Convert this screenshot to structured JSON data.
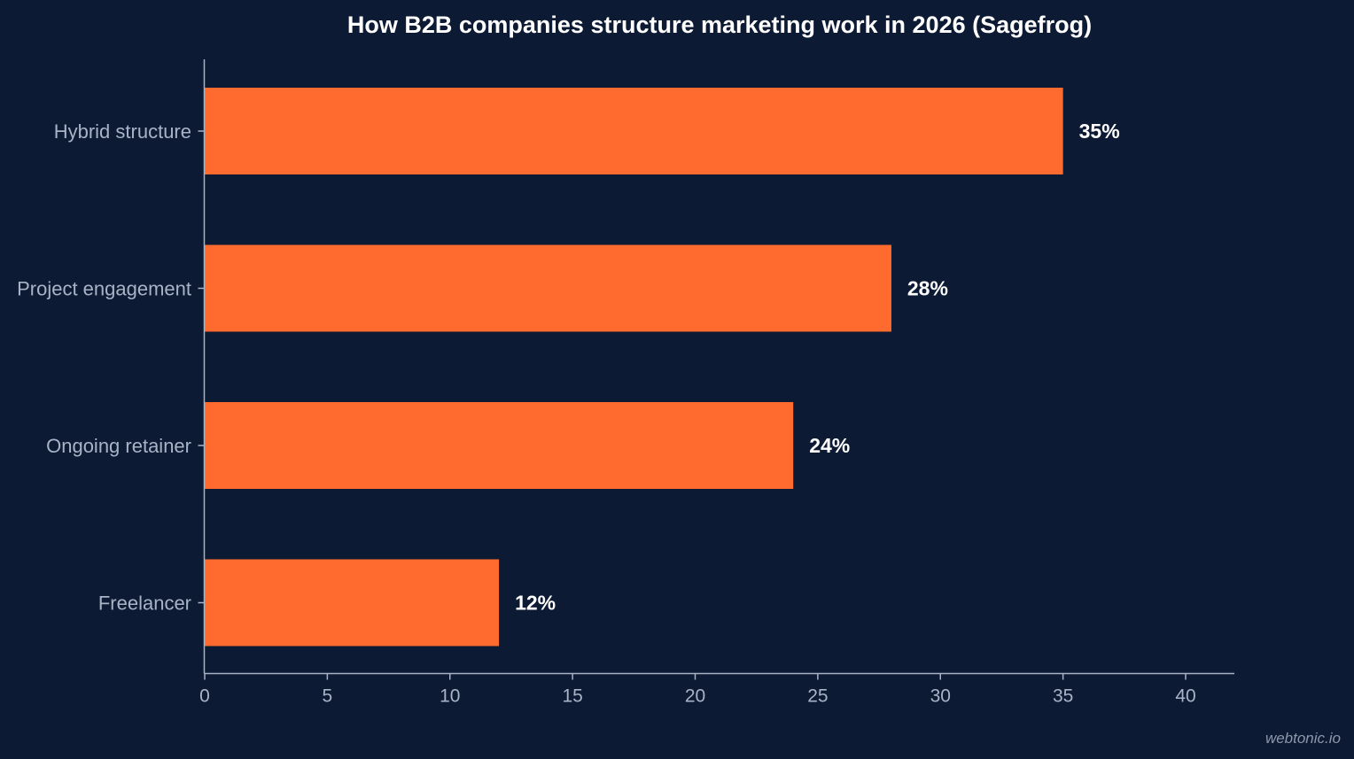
{
  "chart_data": {
    "type": "bar",
    "orientation": "horizontal",
    "title": "How B2B companies structure marketing work in 2026 (Sagefrog)",
    "categories": [
      "Hybrid structure",
      "Project engagement",
      "Ongoing retainer",
      "Freelancer"
    ],
    "values": [
      35,
      28,
      24,
      12
    ],
    "value_labels": [
      "35%",
      "28%",
      "24%",
      "12%"
    ],
    "xlim": [
      0,
      42
    ],
    "xticks": [
      0,
      5,
      10,
      15,
      20,
      25,
      30,
      35,
      40
    ],
    "grid": false,
    "legend": "none"
  },
  "watermark": "webtonic.io",
  "colors": {
    "background": "#0c1a33",
    "bar": "#ff6b2f",
    "axis": "#a9b3c6",
    "tick_text": "#a9b3c6",
    "value_text": "#ffffff"
  }
}
